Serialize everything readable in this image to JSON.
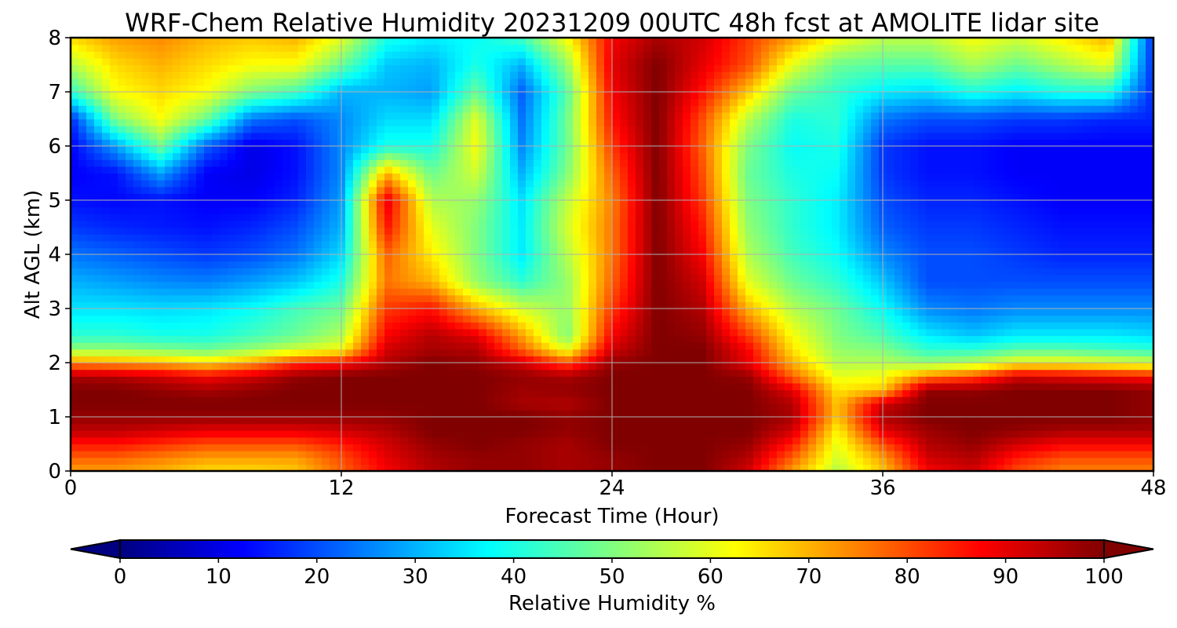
{
  "chart_data": {
    "type": "heatmap",
    "title": "WRF-Chem Relative Humidity 20231209 00UTC 48h fcst at AMOLITE lidar site",
    "xlabel": "Forecast Time (Hour)",
    "ylabel": "Alt AGL (km)",
    "xlim": [
      0,
      48
    ],
    "ylim": [
      0,
      8
    ],
    "xticks": [
      "0",
      "12",
      "24",
      "36",
      "48"
    ],
    "yticks": [
      "0",
      "1",
      "2",
      "3",
      "4",
      "5",
      "6",
      "7",
      "8"
    ],
    "grid": true,
    "colormap": "jet",
    "colorbar": {
      "label": "Relative Humidity %",
      "vmin": 0,
      "vmax": 100,
      "ticks": [
        "0",
        "10",
        "20",
        "30",
        "40",
        "50",
        "60",
        "70",
        "80",
        "90",
        "100"
      ],
      "extend": "both"
    },
    "x_hours": [
      0,
      2,
      4,
      6,
      8,
      10,
      12,
      14,
      16,
      18,
      20,
      22,
      24,
      26,
      28,
      30,
      32,
      34,
      36,
      38,
      40,
      42,
      44,
      46,
      48
    ],
    "y_km": [
      0,
      0.25,
      0.5,
      0.75,
      1,
      1.25,
      1.5,
      1.75,
      2,
      2.25,
      2.5,
      3,
      3.5,
      4,
      4.5,
      5,
      5.5,
      6,
      6.5,
      7,
      7.5,
      8
    ],
    "rh_percent": [
      [
        72,
        72,
        70,
        66,
        66,
        68,
        78,
        88,
        95,
        98,
        98,
        96,
        98,
        100,
        100,
        92,
        72,
        55,
        68,
        88,
        92,
        80,
        75,
        75,
        75
      ],
      [
        78,
        78,
        75,
        72,
        72,
        72,
        80,
        90,
        96,
        98,
        98,
        96,
        98,
        100,
        100,
        95,
        78,
        58,
        72,
        92,
        95,
        85,
        80,
        80,
        80
      ],
      [
        86,
        86,
        83,
        80,
        80,
        80,
        85,
        92,
        98,
        100,
        98,
        96,
        100,
        100,
        100,
        98,
        85,
        60,
        80,
        95,
        98,
        92,
        88,
        88,
        88
      ],
      [
        94,
        94,
        92,
        90,
        90,
        90,
        92,
        95,
        100,
        100,
        100,
        98,
        100,
        100,
        100,
        100,
        92,
        63,
        90,
        97,
        100,
        98,
        96,
        96,
        96
      ],
      [
        98,
        98,
        98,
        98,
        98,
        98,
        98,
        98,
        100,
        100,
        100,
        98,
        100,
        100,
        100,
        100,
        96,
        68,
        95,
        100,
        100,
        100,
        100,
        100,
        98
      ],
      [
        100,
        100,
        100,
        100,
        100,
        100,
        100,
        100,
        100,
        100,
        96,
        95,
        100,
        100,
        100,
        100,
        95,
        68,
        92,
        100,
        100,
        100,
        100,
        100,
        98
      ],
      [
        100,
        100,
        98,
        96,
        98,
        100,
        100,
        100,
        100,
        100,
        97,
        98,
        100,
        100,
        100,
        100,
        90,
        65,
        68,
        98,
        98,
        100,
        100,
        100,
        98
      ],
      [
        96,
        95,
        92,
        88,
        92,
        98,
        100,
        100,
        100,
        100,
        98,
        96,
        100,
        100,
        100,
        98,
        78,
        60,
        62,
        75,
        80,
        92,
        90,
        88,
        86
      ],
      [
        74,
        72,
        70,
        66,
        72,
        82,
        86,
        95,
        100,
        98,
        92,
        80,
        98,
        100,
        100,
        90,
        70,
        55,
        55,
        52,
        55,
        62,
        62,
        60,
        58
      ],
      [
        52,
        52,
        50,
        48,
        52,
        58,
        62,
        92,
        96,
        95,
        78,
        60,
        92,
        100,
        100,
        88,
        65,
        52,
        50,
        42,
        42,
        46,
        46,
        44,
        42
      ],
      [
        42,
        42,
        40,
        40,
        44,
        48,
        55,
        88,
        95,
        90,
        72,
        50,
        88,
        100,
        98,
        82,
        62,
        50,
        45,
        36,
        32,
        36,
        36,
        36,
        34
      ],
      [
        35,
        35,
        34,
        35,
        38,
        44,
        48,
        82,
        86,
        70,
        58,
        52,
        82,
        100,
        95,
        70,
        55,
        48,
        38,
        26,
        24,
        26,
        26,
        26,
        26
      ],
      [
        30,
        28,
        26,
        25,
        28,
        32,
        40,
        76,
        70,
        52,
        42,
        52,
        78,
        100,
        92,
        60,
        48,
        42,
        32,
        20,
        20,
        20,
        20,
        20,
        20
      ],
      [
        24,
        22,
        20,
        18,
        20,
        24,
        34,
        78,
        64,
        50,
        36,
        55,
        76,
        100,
        88,
        55,
        44,
        38,
        26,
        20,
        20,
        18,
        16,
        16,
        16
      ],
      [
        18,
        16,
        15,
        14,
        16,
        20,
        30,
        86,
        60,
        50,
        36,
        58,
        76,
        100,
        85,
        52,
        42,
        36,
        22,
        18,
        18,
        16,
        14,
        14,
        14
      ],
      [
        14,
        13,
        14,
        12,
        12,
        16,
        28,
        90,
        55,
        52,
        35,
        56,
        75,
        100,
        82,
        50,
        42,
        36,
        20,
        16,
        16,
        14,
        12,
        12,
        12
      ],
      [
        12,
        14,
        28,
        12,
        10,
        14,
        26,
        70,
        48,
        58,
        30,
        50,
        78,
        100,
        80,
        48,
        40,
        38,
        18,
        14,
        14,
        12,
        12,
        12,
        12
      ],
      [
        12,
        28,
        48,
        22,
        10,
        14,
        26,
        40,
        40,
        62,
        26,
        48,
        82,
        100,
        78,
        50,
        38,
        40,
        18,
        14,
        14,
        12,
        12,
        12,
        12
      ],
      [
        16,
        50,
        62,
        48,
        24,
        20,
        26,
        34,
        34,
        60,
        24,
        48,
        86,
        100,
        80,
        56,
        40,
        42,
        24,
        20,
        20,
        18,
        18,
        16,
        16
      ],
      [
        42,
        62,
        66,
        62,
        50,
        44,
        30,
        30,
        28,
        48,
        22,
        46,
        88,
        100,
        86,
        68,
        48,
        42,
        36,
        34,
        40,
        36,
        40,
        40,
        16
      ],
      [
        55,
        66,
        70,
        66,
        62,
        62,
        48,
        32,
        30,
        40,
        30,
        52,
        90,
        100,
        90,
        80,
        60,
        48,
        46,
        46,
        54,
        48,
        54,
        60,
        16
      ],
      [
        66,
        72,
        74,
        70,
        68,
        70,
        60,
        40,
        36,
        38,
        44,
        62,
        88,
        96,
        92,
        82,
        72,
        62,
        56,
        56,
        62,
        58,
        64,
        70,
        16
      ]
    ]
  }
}
